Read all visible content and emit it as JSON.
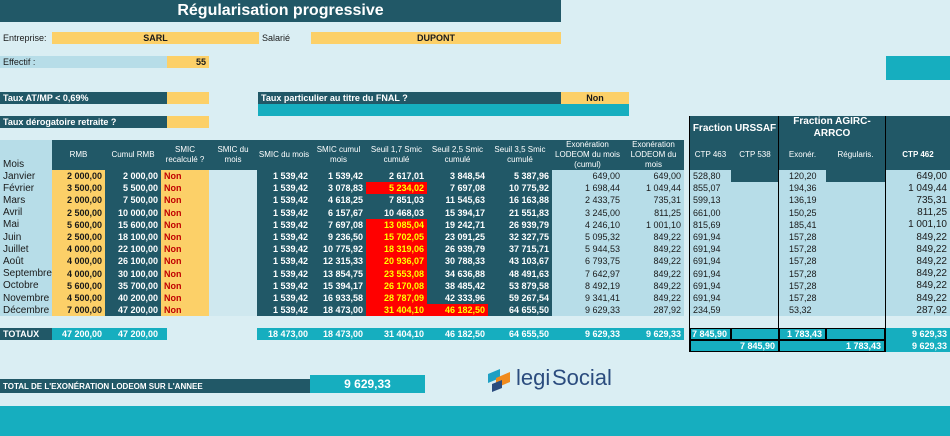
{
  "title": "Régularisation progressive",
  "labels": {
    "entreprise": "Entreprise:",
    "entreprise_value": "SARL",
    "salarie": "Salarié",
    "salarie_value": "DUPONT",
    "effectif": "Effectif :",
    "effectif_value": "55",
    "taux_atmp": "Taux AT/MP < 0,69%",
    "taux_fnal": "Taux particulier au titre du FNAL ?",
    "taux_fnal_value": "Non",
    "taux_derog": "Taux dérogatoire retraite ?"
  },
  "groups": {
    "urssaf": "Fraction URSSAF",
    "agirc": "Fraction AGIRC-ARRCO"
  },
  "headers": {
    "mois": "Mois",
    "rmb": "RMB",
    "cumul_rmb": "Cumul RMB",
    "smic_recalc": "SMIC recalculé ?",
    "smic_du_mois_a": "SMIC du mois",
    "smic_du_mois": "SMIC du mois",
    "smic_cumul": "SMIC cumul mois",
    "seuil17": "Seuil 1,7 Smic cumulé",
    "seuil25": "Seuil 2,5 Smic cumulé",
    "seuil35": "Seuil 3,5 Smic cumulé",
    "exo_cumul": "Exonération LODEOM du mois (cumul)",
    "exo_mois": "Exonération LODEOM du mois",
    "ctp463": "CTP 463",
    "ctp538": "CTP 538",
    "exoner": "Exonér.",
    "regularis": "Régularis.",
    "ctp462": "CTP 462"
  },
  "rows": [
    {
      "mois": "Janvier",
      "rmb": "2 000,00",
      "cumul": "2 000,00",
      "recalc": "Non",
      "smic": "1 539,42",
      "smic_cumul": "1 539,42",
      "s17": "2 617,01",
      "s17_red": false,
      "s25": "3 848,54",
      "s25_red": false,
      "s35": "5 387,96",
      "exo_cumul": "649,00",
      "exo_mois": "649,00",
      "ctp463": "528,80",
      "ctp538": "",
      "exoner": "120,20",
      "regul": "",
      "ctp462": "649,00"
    },
    {
      "mois": "Février",
      "rmb": "3 500,00",
      "cumul": "5 500,00",
      "recalc": "Non",
      "smic": "1 539,42",
      "smic_cumul": "3 078,83",
      "s17": "5 234,02",
      "s17_red": true,
      "s25": "7 697,08",
      "s25_red": false,
      "s35": "10 775,92",
      "exo_cumul": "1 698,44",
      "exo_mois": "1 049,44",
      "ctp463": "855,07",
      "ctp538": "",
      "exoner": "194,36",
      "regul": "",
      "ctp462": "1 049,44"
    },
    {
      "mois": "Mars",
      "rmb": "2 000,00",
      "cumul": "7 500,00",
      "recalc": "Non",
      "smic": "1 539,42",
      "smic_cumul": "4 618,25",
      "s17": "7 851,03",
      "s17_red": false,
      "s25": "11 545,63",
      "s25_red": false,
      "s35": "16 163,88",
      "exo_cumul": "2 433,75",
      "exo_mois": "735,31",
      "ctp463": "599,13",
      "ctp538": "",
      "exoner": "136,19",
      "regul": "",
      "ctp462": "735,31"
    },
    {
      "mois": "Avril",
      "rmb": "2 500,00",
      "cumul": "10 000,00",
      "recalc": "Non",
      "smic": "1 539,42",
      "smic_cumul": "6 157,67",
      "s17": "10 468,03",
      "s17_red": false,
      "s25": "15 394,17",
      "s25_red": false,
      "s35": "21 551,83",
      "exo_cumul": "3 245,00",
      "exo_mois": "811,25",
      "ctp463": "661,00",
      "ctp538": "",
      "exoner": "150,25",
      "regul": "",
      "ctp462": "811,25"
    },
    {
      "mois": "Mai",
      "rmb": "5 600,00",
      "cumul": "15 600,00",
      "recalc": "Non",
      "smic": "1 539,42",
      "smic_cumul": "7 697,08",
      "s17": "13 085,04",
      "s17_red": true,
      "s25": "19 242,71",
      "s25_red": false,
      "s35": "26 939,79",
      "exo_cumul": "4 246,10",
      "exo_mois": "1 001,10",
      "ctp463": "815,69",
      "ctp538": "",
      "exoner": "185,41",
      "regul": "",
      "ctp462": "1 001,10"
    },
    {
      "mois": "Juin",
      "rmb": "2 500,00",
      "cumul": "18 100,00",
      "recalc": "Non",
      "smic": "1 539,42",
      "smic_cumul": "9 236,50",
      "s17": "15 702,05",
      "s17_red": true,
      "s25": "23 091,25",
      "s25_red": false,
      "s35": "32 327,75",
      "exo_cumul": "5 095,32",
      "exo_mois": "849,22",
      "ctp463": "691,94",
      "ctp538": "",
      "exoner": "157,28",
      "regul": "",
      "ctp462": "849,22"
    },
    {
      "mois": "Juillet",
      "rmb": "4 000,00",
      "cumul": "22 100,00",
      "recalc": "Non",
      "smic": "1 539,42",
      "smic_cumul": "10 775,92",
      "s17": "18 319,06",
      "s17_red": true,
      "s25": "26 939,79",
      "s25_red": false,
      "s35": "37 715,71",
      "exo_cumul": "5 944,53",
      "exo_mois": "849,22",
      "ctp463": "691,94",
      "ctp538": "",
      "exoner": "157,28",
      "regul": "",
      "ctp462": "849,22"
    },
    {
      "mois": "Août",
      "rmb": "4 000,00",
      "cumul": "26 100,00",
      "recalc": "Non",
      "smic": "1 539,42",
      "smic_cumul": "12 315,33",
      "s17": "20 936,07",
      "s17_red": true,
      "s25": "30 788,33",
      "s25_red": false,
      "s35": "43 103,67",
      "exo_cumul": "6 793,75",
      "exo_mois": "849,22",
      "ctp463": "691,94",
      "ctp538": "",
      "exoner": "157,28",
      "regul": "",
      "ctp462": "849,22"
    },
    {
      "mois": "Septembre",
      "rmb": "4 000,00",
      "cumul": "30 100,00",
      "recalc": "Non",
      "smic": "1 539,42",
      "smic_cumul": "13 854,75",
      "s17": "23 553,08",
      "s17_red": true,
      "s25": "34 636,88",
      "s25_red": false,
      "s35": "48 491,63",
      "exo_cumul": "7 642,97",
      "exo_mois": "849,22",
      "ctp463": "691,94",
      "ctp538": "",
      "exoner": "157,28",
      "regul": "",
      "ctp462": "849,22"
    },
    {
      "mois": "Octobre",
      "rmb": "5 600,00",
      "cumul": "35 700,00",
      "recalc": "Non",
      "smic": "1 539,42",
      "smic_cumul": "15 394,17",
      "s17": "26 170,08",
      "s17_red": true,
      "s25": "38 485,42",
      "s25_red": false,
      "s35": "53 879,58",
      "exo_cumul": "8 492,19",
      "exo_mois": "849,22",
      "ctp463": "691,94",
      "ctp538": "",
      "exoner": "157,28",
      "regul": "",
      "ctp462": "849,22"
    },
    {
      "mois": "Novembre",
      "rmb": "4 500,00",
      "cumul": "40 200,00",
      "recalc": "Non",
      "smic": "1 539,42",
      "smic_cumul": "16 933,58",
      "s17": "28 787,09",
      "s17_red": true,
      "s25": "42 333,96",
      "s25_red": false,
      "s35": "59 267,54",
      "exo_cumul": "9 341,41",
      "exo_mois": "849,22",
      "ctp463": "691,94",
      "ctp538": "",
      "exoner": "157,28",
      "regul": "",
      "ctp462": "849,22"
    },
    {
      "mois": "Décembre",
      "rmb": "7 000,00",
      "cumul": "47 200,00",
      "recalc": "Non",
      "smic": "1 539,42",
      "smic_cumul": "18 473,00",
      "s17": "31 404,10",
      "s17_red": true,
      "s25": "46 182,50",
      "s25_red": true,
      "s35": "64 655,50",
      "exo_cumul": "9 629,33",
      "exo_mois": "287,92",
      "ctp463": "234,59",
      "ctp538": "",
      "exoner": "53,32",
      "regul": "",
      "ctp462": "287,92"
    }
  ],
  "totals": {
    "label": "TOTAUX",
    "rmb": "47 200,00",
    "cumul": "47 200,00",
    "smic": "18 473,00",
    "smic_cumul": "18 473,00",
    "s17": "31 404,10",
    "s25": "46 182,50",
    "s35": "64 655,50",
    "exo_cumul": "9 629,33",
    "exo_mois": "9 629,33",
    "ctp463": "7 845,90",
    "exoner": "1 783,43",
    "ctp462": "9 629,33",
    "urssaf_sum": "7 845,90",
    "agirc_sum": "1 783,43",
    "ctp462_sum": "9 629,33"
  },
  "total_exo": {
    "label": "TOTAL DE L'EXONÉRATION LODEOM SUR L'ANNEE",
    "value": "9 629,33"
  },
  "logo": {
    "text_a": "legi",
    "text_b": "Social"
  },
  "colors": {
    "dark_teal": "#215867",
    "turquoise": "#16aebf",
    "yellow": "#fcd068",
    "red": "#ff0000"
  }
}
